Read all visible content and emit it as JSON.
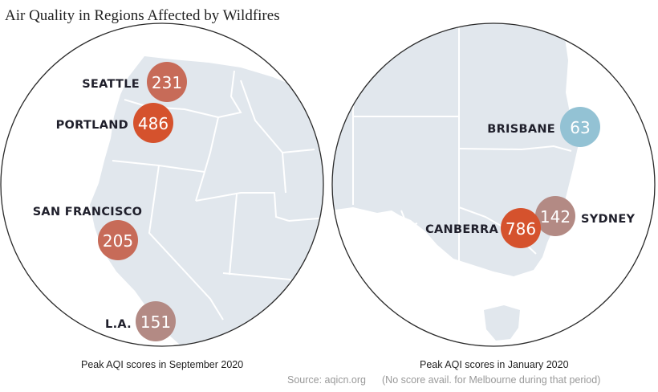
{
  "title": "Air Quality in Regions Affected by Wildfires",
  "colors": {
    "land": "#e1e7ed",
    "border": "#ffffff",
    "circle_outline": "#2a2a2a",
    "aqi_very_high": "#d5522d",
    "aqi_high": "#c76b58",
    "aqi_moderate": "#b38a84",
    "aqi_good": "#93c2d4"
  },
  "maps": [
    {
      "region": "us-west-coast",
      "caption": "Peak AQI scores in September 2020",
      "cities": [
        {
          "name": "SEATTLE",
          "aqi": 231,
          "color": "#c76b58"
        },
        {
          "name": "PORTLAND",
          "aqi": 486,
          "color": "#d5522d"
        },
        {
          "name": "SAN FRANCISCO",
          "aqi": 205,
          "color": "#c76b58"
        },
        {
          "name": "L.A.",
          "aqi": 151,
          "color": "#b38a84"
        }
      ]
    },
    {
      "region": "southeast-australia",
      "caption": "Peak AQI scores in January 2020",
      "cities": [
        {
          "name": "BRISBANE",
          "aqi": 63,
          "color": "#93c2d4"
        },
        {
          "name": "CANBERRA",
          "aqi": 786,
          "color": "#d5522d"
        },
        {
          "name": "SYDNEY",
          "aqi": 142,
          "color": "#b38a84"
        }
      ]
    }
  ],
  "source": "Source: aqicn.org",
  "note": "(No score avail. for Melbourne during that period)"
}
